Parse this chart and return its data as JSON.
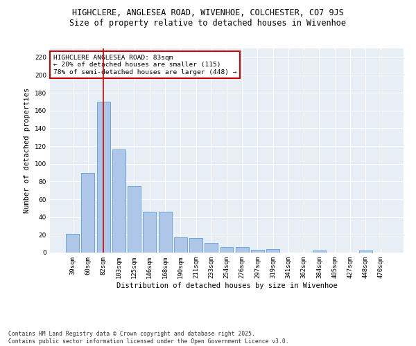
{
  "title_line1": "HIGHCLERE, ANGLESEA ROAD, WIVENHOE, COLCHESTER, CO7 9JS",
  "title_line2": "Size of property relative to detached houses in Wivenhoe",
  "xlabel": "Distribution of detached houses by size in Wivenhoe",
  "ylabel": "Number of detached properties",
  "categories": [
    "39sqm",
    "60sqm",
    "82sqm",
    "103sqm",
    "125sqm",
    "146sqm",
    "168sqm",
    "190sqm",
    "211sqm",
    "233sqm",
    "254sqm",
    "276sqm",
    "297sqm",
    "319sqm",
    "341sqm",
    "362sqm",
    "384sqm",
    "405sqm",
    "427sqm",
    "448sqm",
    "470sqm"
  ],
  "values": [
    21,
    90,
    170,
    116,
    75,
    46,
    46,
    17,
    16,
    11,
    6,
    6,
    3,
    4,
    0,
    0,
    2,
    0,
    0,
    2,
    0
  ],
  "bar_color": "#aec6e8",
  "bar_edge_color": "#5a9fd4",
  "highlight_bar_index": 2,
  "highlight_line_color": "#cc0000",
  "ylim": [
    0,
    230
  ],
  "yticks": [
    0,
    20,
    40,
    60,
    80,
    100,
    120,
    140,
    160,
    180,
    200,
    220
  ],
  "annotation_text": "HIGHCLERE ANGLESEA ROAD: 83sqm\n← 20% of detached houses are smaller (115)\n78% of semi-detached houses are larger (448) →",
  "annotation_box_color": "#cc0000",
  "background_color": "#e8eef5",
  "grid_color": "#ffffff",
  "footer_text": "Contains HM Land Registry data © Crown copyright and database right 2025.\nContains public sector information licensed under the Open Government Licence v3.0.",
  "title_fontsize": 8.5,
  "subtitle_fontsize": 8.5,
  "axis_label_fontsize": 7.5,
  "tick_fontsize": 6.5,
  "annotation_fontsize": 6.8,
  "footer_fontsize": 5.8
}
